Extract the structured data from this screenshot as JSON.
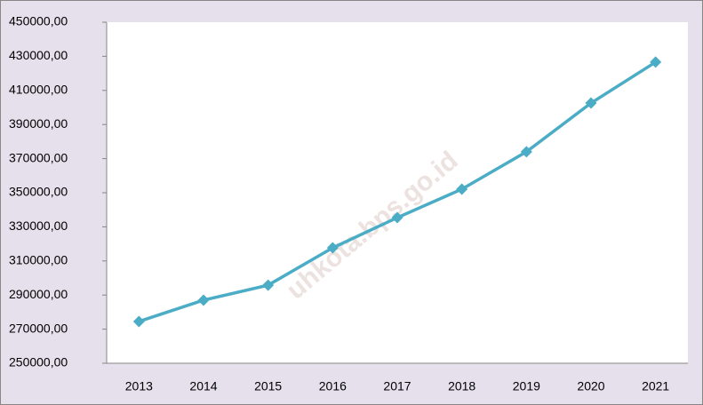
{
  "chart_data": {
    "type": "line",
    "categories": [
      "2013",
      "2014",
      "2015",
      "2016",
      "2017",
      "2018",
      "2019",
      "2020",
      "2021"
    ],
    "series": [
      {
        "name": null,
        "color": "#4bacc6",
        "values": [
          274500,
          287000,
          295800,
          317700,
          335400,
          352100,
          374000,
          402600,
          426600
        ]
      }
    ],
    "ylim": [
      250000,
      450000
    ],
    "yticks": [
      {
        "value": 250000,
        "label": "250000,00"
      },
      {
        "value": 270000,
        "label": "270000,00"
      },
      {
        "value": 290000,
        "label": "290000,00"
      },
      {
        "value": 310000,
        "label": "310000,00"
      },
      {
        "value": 330000,
        "label": "330000,00"
      },
      {
        "value": 350000,
        "label": "350000,00"
      },
      {
        "value": 370000,
        "label": "370000,00"
      },
      {
        "value": 390000,
        "label": "390000,00"
      },
      {
        "value": 410000,
        "label": "410000,00"
      },
      {
        "value": 430000,
        "label": "430000,00"
      },
      {
        "value": 450000,
        "label": "450000,00"
      }
    ],
    "grid": false,
    "watermark": "uhkota.bps.go.id"
  }
}
